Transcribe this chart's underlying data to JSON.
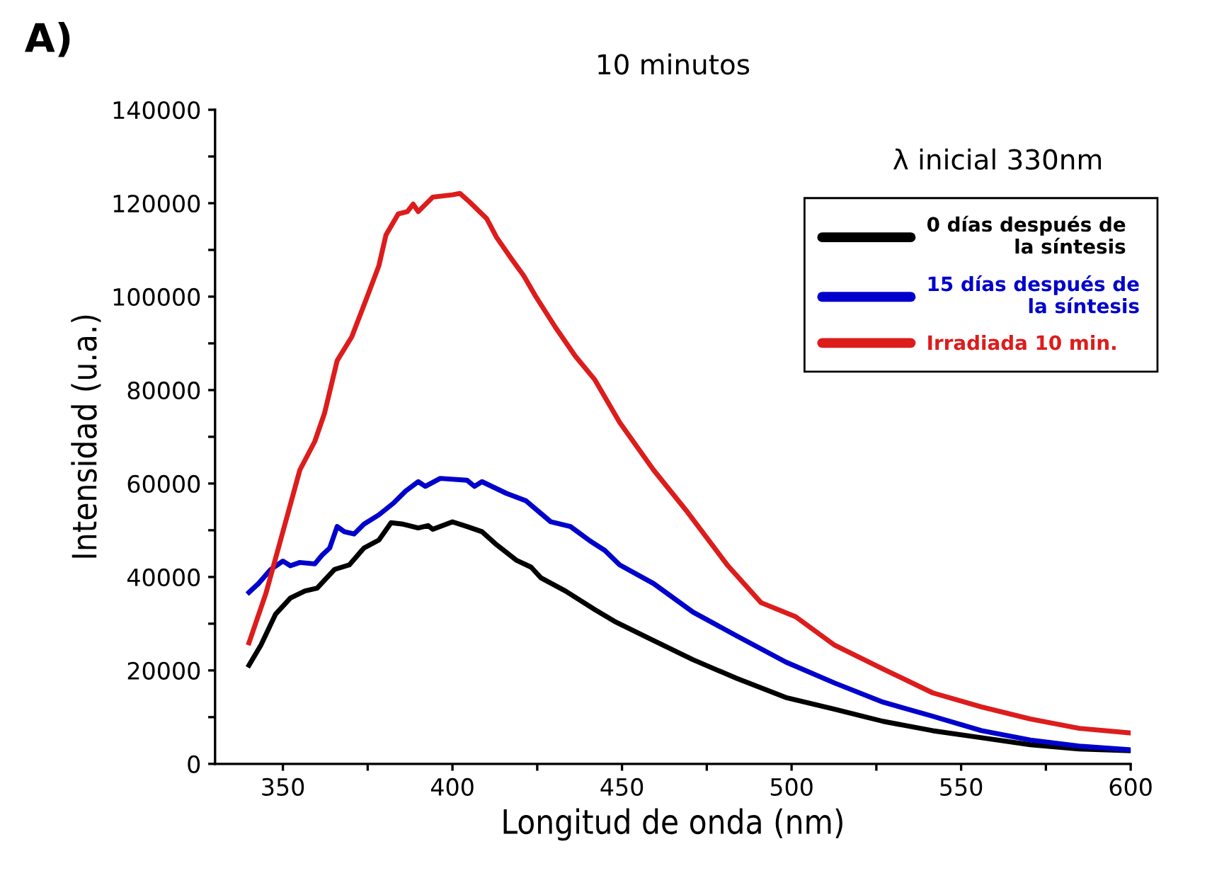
{
  "chart_data": {
    "type": "line",
    "title": "10 minutos",
    "xlabel": "Longitud de onda (nm)",
    "ylabel": "Intensidad (u.a.)",
    "legend_title": "λ inicial 330nm",
    "annotations": [
      "A)"
    ],
    "xlim": [
      330,
      600
    ],
    "xticks": [
      350,
      {
        "value": 375,
        "label": null
      },
      400,
      {
        "value": 425,
        "label": null
      },
      450,
      {
        "value": 475,
        "label": null
      },
      500,
      {
        "value": 525,
        "label": null
      },
      550,
      {
        "value": 575,
        "label": null
      },
      600
    ],
    "ylim": [
      0,
      140000
    ],
    "yticks": [
      0,
      {
        "value": 10000,
        "label": null
      },
      20000,
      {
        "value": 30000,
        "label": null
      },
      40000,
      {
        "value": 50000,
        "label": null
      },
      60000,
      {
        "value": 70000,
        "label": null
      },
      80000,
      {
        "value": 90000,
        "label": null
      },
      100000,
      {
        "value": 110000,
        "label": null
      },
      120000,
      {
        "value": 130000,
        "label": null
      },
      140000
    ],
    "grid": false,
    "legend": "top right",
    "marker": "none",
    "line_style": "solid",
    "series": [
      {
        "name": "0 días después de\nla síntesis",
        "color": "#000000",
        "x": [
          340,
          343.5,
          347.8,
          352.2,
          356.5,
          360.1,
          365.2,
          369.6,
          373.9,
          378.3,
          381.9,
          385.5,
          389.9,
          392.8,
          394.2,
          400,
          404.3,
          408.7,
          413,
          418.8,
          423.2,
          426.1,
          433.3,
          442,
          447.8,
          459.3,
          470.9,
          483.8,
          498.3,
          512.7,
          527,
          541.6,
          556,
          570.4,
          584.8,
          600
        ],
        "values": [
          21100,
          25400,
          32000,
          35500,
          37000,
          37600,
          41600,
          42600,
          46200,
          47900,
          51600,
          51300,
          50500,
          51000,
          50200,
          51800,
          50800,
          49700,
          46900,
          43600,
          42100,
          39800,
          37000,
          33000,
          30500,
          26400,
          22300,
          18300,
          14200,
          11700,
          9100,
          7100,
          5600,
          4100,
          3200,
          2800
        ]
      },
      {
        "name": "15 días después de\nla síntesis",
        "color": "#0000cc",
        "x": [
          340,
          342.8,
          346.4,
          350,
          352.2,
          355,
          359.4,
          361.6,
          363.8,
          366,
          368.1,
          371,
          373.9,
          378.3,
          382.6,
          386.2,
          389.9,
          392,
          396.4,
          404.3,
          406.5,
          408.7,
          415.9,
          421.7,
          429,
          434.8,
          440.6,
          444.9,
          449.3,
          459.3,
          470.9,
          483.8,
          498.3,
          512.7,
          527,
          541.6,
          556,
          570.4,
          584.8,
          600
        ],
        "values": [
          36700,
          38600,
          41600,
          43400,
          42400,
          43100,
          42800,
          44700,
          46200,
          50800,
          49700,
          49200,
          51300,
          53300,
          55800,
          58400,
          60400,
          59400,
          61100,
          60700,
          59400,
          60400,
          57900,
          56300,
          51800,
          50800,
          47700,
          45700,
          42600,
          38600,
          32500,
          27400,
          21800,
          17300,
          13200,
          10200,
          7100,
          5100,
          3800,
          3000
        ]
      },
      {
        "name": "Irradiada 10 min.",
        "color": "#dd1c1c",
        "x": [
          340,
          345,
          350,
          355,
          359.4,
          362.3,
          366,
          370.3,
          374.6,
          378.3,
          380.4,
          384,
          386.7,
          388.4,
          389.9,
          394.2,
          400,
          402.2,
          405,
          410.1,
          413,
          417.4,
          421,
          424.6,
          430.4,
          436.2,
          442,
          449.3,
          459.3,
          469.4,
          481,
          491,
          501.2,
          512.7,
          527,
          541.6,
          556,
          570.4,
          584.8,
          600
        ],
        "values": [
          25900,
          36500,
          49700,
          62900,
          69000,
          75100,
          86300,
          91400,
          99500,
          106600,
          113200,
          117700,
          118200,
          119800,
          118200,
          121300,
          121800,
          122100,
          120300,
          116700,
          112700,
          108100,
          104500,
          100000,
          93400,
          87300,
          82200,
          73100,
          62900,
          53800,
          42600,
          34500,
          31500,
          25400,
          20300,
          15200,
          12200,
          9600,
          7600,
          6600
        ]
      }
    ]
  }
}
